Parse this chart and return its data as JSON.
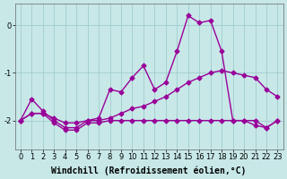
{
  "xlabel": "Windchill (Refroidissement éolien,°C)",
  "background_color": "#c8e8e8",
  "grid_color": "#a0cccc",
  "line_color": "#990099",
  "xlim": [
    -0.5,
    23.5
  ],
  "ylim": [
    -2.6,
    0.45
  ],
  "yticks": [
    -2,
    -1,
    0
  ],
  "xticks": [
    0,
    1,
    2,
    3,
    4,
    5,
    6,
    7,
    8,
    9,
    10,
    11,
    12,
    13,
    14,
    15,
    16,
    17,
    18,
    19,
    20,
    21,
    22,
    23
  ],
  "line1_x": [
    0,
    1,
    2,
    3,
    4,
    5,
    6,
    7,
    8,
    9,
    10,
    11,
    12,
    13,
    14,
    15,
    16,
    17,
    18,
    19,
    20,
    21,
    22,
    23
  ],
  "line1_y": [
    -2.0,
    -1.55,
    -1.8,
    -2.0,
    -2.15,
    -2.15,
    -2.0,
    -1.95,
    -1.35,
    -1.4,
    -1.1,
    -0.85,
    -1.35,
    -1.2,
    -0.55,
    0.2,
    0.05,
    0.1,
    -0.55,
    -2.0,
    -2.0,
    -2.1,
    -2.15,
    -2.0
  ],
  "line2_x": [
    0,
    1,
    2,
    3,
    4,
    5,
    6,
    7,
    8,
    9,
    10,
    11,
    12,
    13,
    14,
    15,
    16,
    17,
    18,
    19,
    20,
    21,
    22,
    23
  ],
  "line2_y": [
    -2.0,
    -1.85,
    -1.85,
    -1.95,
    -2.05,
    -2.05,
    -2.0,
    -2.0,
    -1.95,
    -1.85,
    -1.75,
    -1.7,
    -1.6,
    -1.5,
    -1.35,
    -1.2,
    -1.1,
    -1.0,
    -0.95,
    -1.0,
    -1.05,
    -1.1,
    -1.35,
    -1.5
  ],
  "line3_x": [
    0,
    1,
    2,
    3,
    4,
    5,
    6,
    7,
    8,
    9,
    10,
    11,
    12,
    13,
    14,
    15,
    16,
    17,
    18,
    19,
    20,
    21,
    22,
    23
  ],
  "line3_y": [
    -2.0,
    -1.85,
    -1.85,
    -2.05,
    -2.2,
    -2.2,
    -2.05,
    -2.05,
    -2.0,
    -2.0,
    -2.0,
    -2.0,
    -2.0,
    -2.0,
    -2.0,
    -2.0,
    -2.0,
    -2.0,
    -2.0,
    -2.0,
    -2.0,
    -2.0,
    -2.15,
    -2.0
  ],
  "xlabel_fontsize": 7,
  "tick_fontsize": 6,
  "marker": "D",
  "markersize": 2.5,
  "linewidth": 1.0
}
